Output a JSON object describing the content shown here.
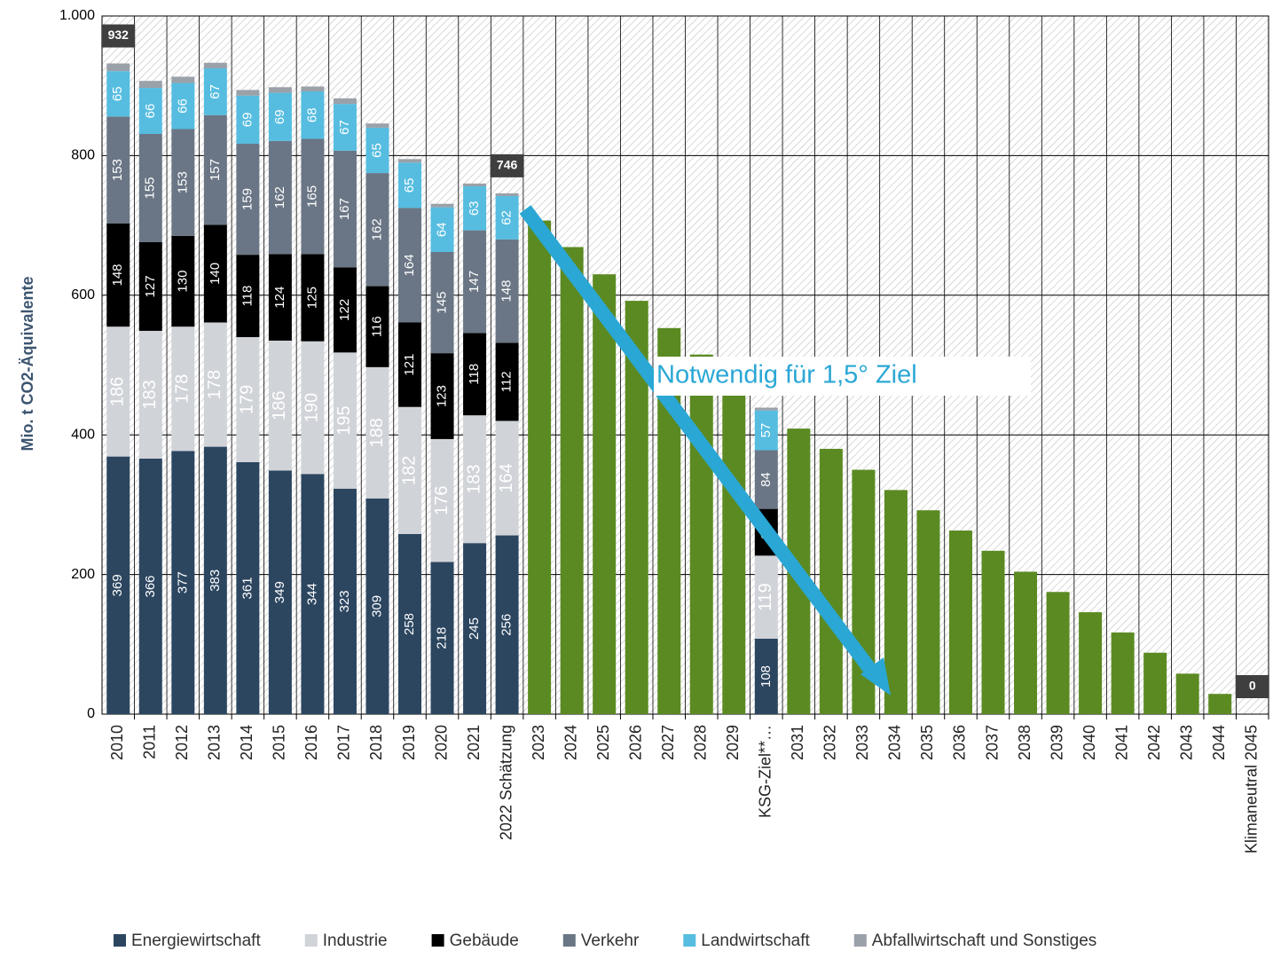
{
  "chart_data": {
    "type": "stacked_bar",
    "y_label": "Mio. t CO2-Äquivalente",
    "categories": [
      "2010",
      "2011",
      "2012",
      "2013",
      "2014",
      "2015",
      "2016",
      "2017",
      "2018",
      "2019",
      "2020",
      "2021",
      "2022 Schätzung",
      "2023",
      "2024",
      "2025",
      "2026",
      "2027",
      "2028",
      "2029",
      "KSG-Ziel**…",
      "2031",
      "2032",
      "2033",
      "2034",
      "2035",
      "2036",
      "2037",
      "2038",
      "2039",
      "2040",
      "2041",
      "2042",
      "2043",
      "2044",
      "Klimaneutral 2045"
    ],
    "series": [
      {
        "name": "Energiewirtschaft",
        "color": "#2c4660",
        "values": [
          369,
          366,
          377,
          383,
          361,
          349,
          344,
          323,
          309,
          258,
          218,
          245,
          256,
          null,
          null,
          null,
          null,
          null,
          null,
          null,
          108,
          null,
          null,
          null,
          null,
          null,
          null,
          null,
          null,
          null,
          null,
          null,
          null,
          null,
          null,
          null
        ]
      },
      {
        "name": "Industrie",
        "color": "#d0d3d8",
        "values": [
          186,
          183,
          178,
          178,
          179,
          186,
          190,
          195,
          188,
          182,
          176,
          183,
          164,
          null,
          null,
          null,
          null,
          null,
          null,
          null,
          119,
          null,
          null,
          null,
          null,
          null,
          null,
          null,
          null,
          null,
          null,
          null,
          null,
          null,
          null,
          null
        ]
      },
      {
        "name": "Gebäude",
        "color": "#000000",
        "values": [
          148,
          127,
          130,
          140,
          118,
          124,
          125,
          122,
          116,
          121,
          123,
          118,
          112,
          null,
          null,
          null,
          null,
          null,
          null,
          null,
          67,
          null,
          null,
          null,
          null,
          null,
          null,
          null,
          null,
          null,
          null,
          null,
          null,
          null,
          null,
          null
        ]
      },
      {
        "name": "Verkehr",
        "color": "#6a7685",
        "values": [
          153,
          155,
          153,
          157,
          159,
          162,
          165,
          167,
          162,
          164,
          145,
          147,
          148,
          null,
          null,
          null,
          null,
          null,
          null,
          null,
          84,
          null,
          null,
          null,
          null,
          null,
          null,
          null,
          null,
          null,
          null,
          null,
          null,
          null,
          null,
          null
        ]
      },
      {
        "name": "Landwirtschaft",
        "color": "#56bde0",
        "values": [
          65,
          66,
          66,
          67,
          69,
          69,
          68,
          67,
          65,
          65,
          64,
          63,
          62,
          null,
          null,
          null,
          null,
          null,
          null,
          null,
          57,
          null,
          null,
          null,
          null,
          null,
          null,
          null,
          null,
          null,
          null,
          null,
          null,
          null,
          null,
          null
        ]
      },
      {
        "name": "Abfallwirtschaft und Sonstiges",
        "color": "#9aa1a9",
        "values": [
          11,
          10,
          9,
          8,
          8,
          8,
          7,
          8,
          6,
          5,
          5,
          4,
          4,
          null,
          null,
          null,
          null,
          null,
          null,
          null,
          4,
          null,
          null,
          null,
          null,
          null,
          null,
          null,
          null,
          null,
          null,
          null,
          null,
          null,
          null,
          null
        ]
      },
      {
        "color": "#5b8a22",
        "values": [
          null,
          null,
          null,
          null,
          null,
          null,
          null,
          null,
          null,
          null,
          null,
          null,
          null,
          707,
          669,
          630,
          592,
          553,
          515,
          476,
          null,
          409,
          380,
          350,
          321,
          292,
          263,
          234,
          204,
          175,
          146,
          117,
          88,
          58,
          29,
          0
        ]
      }
    ],
    "totals": [
      {
        "category": "2010",
        "value": 932
      },
      {
        "category": "2022 Schätzung",
        "value": 746
      },
      {
        "category": "Klimaneutral 2045",
        "value": 0
      }
    ],
    "annotation": "Notwendig für 1,5° Ziel",
    "ylim": [
      0,
      1000
    ],
    "yticks": [
      0,
      200,
      400,
      600,
      800,
      {
        "value": 1000,
        "label": "1.000"
      }
    ],
    "grid": true,
    "legend": "bottom"
  }
}
